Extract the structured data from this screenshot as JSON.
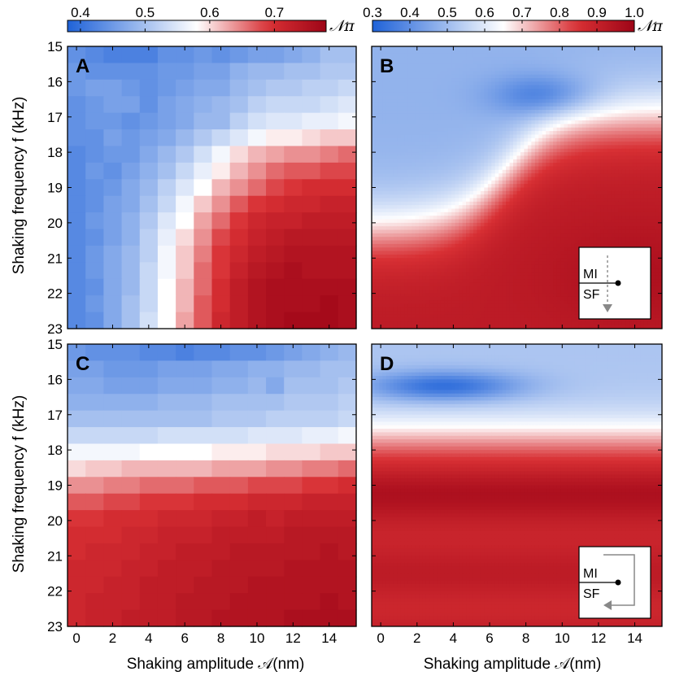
{
  "figure": {
    "axis_labels": {
      "y": "Shaking frequency f (kHz)",
      "x": "Shaking amplitude 𝒜(nm)"
    },
    "colorbar_symbol": "𝒩π",
    "colormap": {
      "low": "#1f62d8",
      "mid": "#ffffff",
      "high": "#9e0517"
    }
  },
  "colorbars": [
    {
      "name": "left",
      "min": 0.38,
      "max": 0.78,
      "ticks": [
        "0.4",
        "0.5",
        "0.6",
        "0.7"
      ],
      "tick_values": [
        0.4,
        0.5,
        0.6,
        0.7
      ],
      "symbol": "𝒩π"
    },
    {
      "name": "right",
      "min": 0.3,
      "max": 1.0,
      "ticks": [
        "0.3",
        "0.4",
        "0.5",
        "0.6",
        "0.7",
        "0.8",
        "0.9",
        "1.0"
      ],
      "tick_values": [
        0.3,
        0.4,
        0.5,
        0.6,
        0.7,
        0.8,
        0.9,
        1.0
      ],
      "symbol": "𝒩π"
    }
  ],
  "chart_data": [
    {
      "panel": "A",
      "type": "heatmap",
      "description": "measured N_pi, MI to SF direction",
      "x_values": [
        0,
        1,
        2,
        3,
        4,
        5,
        6,
        7,
        8,
        9,
        10,
        11,
        12,
        13,
        14,
        15
      ],
      "y_values": [
        15,
        15.5,
        16,
        16.5,
        17,
        17.5,
        18,
        18.5,
        19,
        19.5,
        20,
        20.5,
        21,
        21.5,
        22,
        22.5,
        23
      ],
      "xlim": [
        -0.5,
        15.5
      ],
      "ylim": [
        15,
        23
      ],
      "yticks": [
        "15",
        "16",
        "17",
        "18",
        "19",
        "20",
        "21",
        "22",
        "23"
      ],
      "xticks": [],
      "colorbar": "left",
      "z": [
        [
          0.44,
          0.43,
          0.42,
          0.42,
          0.42,
          0.44,
          0.44,
          0.45,
          0.44,
          0.45,
          0.46,
          0.46,
          0.47,
          0.48,
          0.5,
          0.5
        ],
        [
          0.45,
          0.44,
          0.44,
          0.44,
          0.44,
          0.45,
          0.45,
          0.46,
          0.46,
          0.48,
          0.49,
          0.49,
          0.5,
          0.5,
          0.51,
          0.51
        ],
        [
          0.45,
          0.46,
          0.46,
          0.45,
          0.44,
          0.45,
          0.46,
          0.47,
          0.47,
          0.49,
          0.5,
          0.51,
          0.51,
          0.52,
          0.52,
          0.53
        ],
        [
          0.44,
          0.45,
          0.46,
          0.46,
          0.44,
          0.46,
          0.47,
          0.48,
          0.49,
          0.5,
          0.52,
          0.53,
          0.53,
          0.53,
          0.54,
          0.55
        ],
        [
          0.44,
          0.45,
          0.45,
          0.44,
          0.45,
          0.46,
          0.47,
          0.49,
          0.49,
          0.52,
          0.54,
          0.55,
          0.55,
          0.56,
          0.56,
          0.57
        ],
        [
          0.44,
          0.44,
          0.46,
          0.45,
          0.46,
          0.47,
          0.49,
          0.51,
          0.53,
          0.55,
          0.57,
          0.59,
          0.59,
          0.6,
          0.61,
          0.61
        ],
        [
          0.43,
          0.44,
          0.45,
          0.45,
          0.47,
          0.49,
          0.51,
          0.54,
          0.57,
          0.6,
          0.62,
          0.63,
          0.64,
          0.64,
          0.65,
          0.66
        ],
        [
          0.43,
          0.45,
          0.44,
          0.46,
          0.48,
          0.5,
          0.53,
          0.56,
          0.59,
          0.62,
          0.64,
          0.66,
          0.67,
          0.67,
          0.68,
          0.68
        ],
        [
          0.43,
          0.44,
          0.45,
          0.47,
          0.49,
          0.52,
          0.55,
          0.58,
          0.62,
          0.64,
          0.66,
          0.68,
          0.69,
          0.7,
          0.7,
          0.7
        ],
        [
          0.43,
          0.44,
          0.46,
          0.47,
          0.5,
          0.53,
          0.57,
          0.61,
          0.64,
          0.67,
          0.69,
          0.7,
          0.71,
          0.71,
          0.72,
          0.72
        ],
        [
          0.43,
          0.45,
          0.46,
          0.48,
          0.51,
          0.55,
          0.58,
          0.63,
          0.66,
          0.69,
          0.71,
          0.72,
          0.72,
          0.73,
          0.73,
          0.73
        ],
        [
          0.43,
          0.44,
          0.46,
          0.48,
          0.52,
          0.56,
          0.6,
          0.64,
          0.68,
          0.7,
          0.72,
          0.73,
          0.74,
          0.74,
          0.74,
          0.74
        ],
        [
          0.43,
          0.45,
          0.47,
          0.49,
          0.52,
          0.57,
          0.61,
          0.65,
          0.69,
          0.71,
          0.73,
          0.74,
          0.75,
          0.75,
          0.75,
          0.75
        ],
        [
          0.43,
          0.45,
          0.47,
          0.49,
          0.53,
          0.57,
          0.61,
          0.66,
          0.69,
          0.72,
          0.74,
          0.75,
          0.76,
          0.75,
          0.75,
          0.75
        ],
        [
          0.43,
          0.44,
          0.47,
          0.49,
          0.53,
          0.58,
          0.62,
          0.66,
          0.7,
          0.73,
          0.75,
          0.76,
          0.76,
          0.76,
          0.76,
          0.76
        ],
        [
          0.43,
          0.45,
          0.47,
          0.5,
          0.53,
          0.58,
          0.62,
          0.67,
          0.7,
          0.73,
          0.75,
          0.76,
          0.76,
          0.76,
          0.77,
          0.76
        ],
        [
          0.43,
          0.44,
          0.47,
          0.5,
          0.54,
          0.58,
          0.63,
          0.67,
          0.71,
          0.73,
          0.75,
          0.76,
          0.77,
          0.77,
          0.77,
          0.76
        ]
      ]
    },
    {
      "panel": "B",
      "type": "heatmap",
      "description": "simulated N_pi, MI to SF direction",
      "xlim": [
        -0.5,
        15.5
      ],
      "ylim": [
        15,
        23
      ],
      "model": "transition",
      "colorbar": "right",
      "inset": {
        "top_label": "MI",
        "bottom_label": "SF",
        "path": "vertical-down"
      }
    },
    {
      "panel": "C",
      "type": "heatmap",
      "description": "measured N_pi, SF to MI direction",
      "x_values": [
        0,
        1,
        2,
        3,
        4,
        5,
        6,
        7,
        8,
        9,
        10,
        11,
        12,
        13,
        14,
        15
      ],
      "y_values": [
        15,
        15.5,
        16,
        16.5,
        17,
        17.5,
        18,
        18.5,
        19,
        19.5,
        20,
        20.5,
        21,
        21.5,
        22,
        22.5,
        23
      ],
      "xlim": [
        -0.5,
        15.5
      ],
      "ylim": [
        15,
        23
      ],
      "xticks": [
        "0",
        "2",
        "4",
        "6",
        "8",
        "10",
        "12",
        "14"
      ],
      "yticks": [
        "15",
        "16",
        "17",
        "18",
        "19",
        "20",
        "21",
        "22",
        "23"
      ],
      "colorbar": "left",
      "z": [
        [
          0.45,
          0.44,
          0.44,
          0.44,
          0.43,
          0.43,
          0.42,
          0.43,
          0.43,
          0.44,
          0.44,
          0.45,
          0.46,
          0.47,
          0.48,
          0.49
        ],
        [
          0.46,
          0.46,
          0.45,
          0.45,
          0.45,
          0.46,
          0.46,
          0.46,
          0.47,
          0.47,
          0.48,
          0.48,
          0.49,
          0.49,
          0.5,
          0.5
        ],
        [
          0.47,
          0.47,
          0.46,
          0.46,
          0.46,
          0.47,
          0.47,
          0.47,
          0.48,
          0.48,
          0.49,
          0.47,
          0.5,
          0.5,
          0.5,
          0.51
        ],
        [
          0.48,
          0.48,
          0.48,
          0.48,
          0.48,
          0.49,
          0.49,
          0.49,
          0.5,
          0.5,
          0.5,
          0.5,
          0.51,
          0.51,
          0.51,
          0.52
        ],
        [
          0.5,
          0.5,
          0.5,
          0.5,
          0.5,
          0.5,
          0.5,
          0.5,
          0.51,
          0.51,
          0.51,
          0.52,
          0.52,
          0.52,
          0.52,
          0.53
        ],
        [
          0.53,
          0.53,
          0.53,
          0.53,
          0.53,
          0.54,
          0.54,
          0.54,
          0.54,
          0.54,
          0.55,
          0.55,
          0.55,
          0.56,
          0.56,
          0.57
        ],
        [
          0.57,
          0.57,
          0.57,
          0.57,
          0.58,
          0.58,
          0.58,
          0.58,
          0.59,
          0.59,
          0.59,
          0.6,
          0.6,
          0.6,
          0.61,
          0.61
        ],
        [
          0.6,
          0.61,
          0.61,
          0.62,
          0.62,
          0.62,
          0.62,
          0.62,
          0.63,
          0.63,
          0.63,
          0.64,
          0.64,
          0.65,
          0.65,
          0.66
        ],
        [
          0.64,
          0.64,
          0.65,
          0.65,
          0.66,
          0.66,
          0.66,
          0.67,
          0.67,
          0.67,
          0.68,
          0.68,
          0.68,
          0.69,
          0.69,
          0.7
        ],
        [
          0.67,
          0.67,
          0.68,
          0.68,
          0.69,
          0.69,
          0.69,
          0.7,
          0.7,
          0.7,
          0.71,
          0.71,
          0.71,
          0.72,
          0.72,
          0.72
        ],
        [
          0.69,
          0.69,
          0.7,
          0.7,
          0.7,
          0.71,
          0.71,
          0.71,
          0.72,
          0.72,
          0.73,
          0.72,
          0.73,
          0.73,
          0.73,
          0.73
        ],
        [
          0.7,
          0.7,
          0.7,
          0.71,
          0.71,
          0.72,
          0.72,
          0.72,
          0.73,
          0.73,
          0.73,
          0.73,
          0.74,
          0.74,
          0.74,
          0.74
        ],
        [
          0.7,
          0.71,
          0.71,
          0.71,
          0.72,
          0.72,
          0.73,
          0.73,
          0.73,
          0.74,
          0.74,
          0.74,
          0.74,
          0.74,
          0.75,
          0.74
        ],
        [
          0.71,
          0.71,
          0.71,
          0.72,
          0.72,
          0.73,
          0.73,
          0.73,
          0.74,
          0.74,
          0.74,
          0.74,
          0.75,
          0.75,
          0.75,
          0.75
        ],
        [
          0.71,
          0.71,
          0.72,
          0.72,
          0.73,
          0.73,
          0.73,
          0.74,
          0.74,
          0.74,
          0.75,
          0.75,
          0.75,
          0.75,
          0.75,
          0.75
        ],
        [
          0.71,
          0.72,
          0.72,
          0.72,
          0.73,
          0.73,
          0.74,
          0.74,
          0.74,
          0.75,
          0.75,
          0.75,
          0.75,
          0.75,
          0.76,
          0.75
        ],
        [
          0.71,
          0.72,
          0.72,
          0.73,
          0.73,
          0.73,
          0.74,
          0.74,
          0.75,
          0.75,
          0.75,
          0.75,
          0.76,
          0.76,
          0.76,
          0.76
        ]
      ]
    },
    {
      "panel": "D",
      "type": "heatmap",
      "description": "simulated N_pi, SF to MI direction",
      "xlim": [
        -0.5,
        15.5
      ],
      "ylim": [
        15,
        23
      ],
      "xticks": [
        "0",
        "2",
        "4",
        "6",
        "8",
        "10",
        "12",
        "14"
      ],
      "model": "band",
      "colorbar": "right",
      "inset": {
        "top_label": "MI",
        "bottom_label": "SF",
        "path": "loop-back"
      }
    }
  ]
}
